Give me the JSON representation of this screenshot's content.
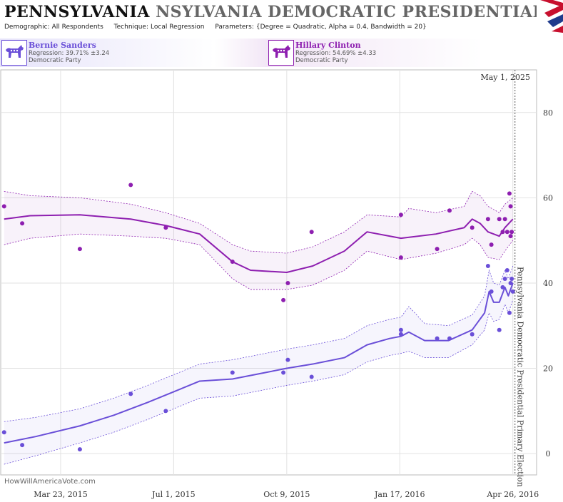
{
  "header": {
    "title_state": "PENNSYLVANIA",
    "title_rest": "NSYLVANIA DEMOCRATIC PRESIDENTIAL PRIM",
    "params": [
      {
        "label": "Demographic:",
        "value": "All Respondents"
      },
      {
        "label": "Technique:",
        "value": "Local Regression"
      },
      {
        "label": "Parameters:",
        "value": "{Degree = Quadratic, Alpha = 0.4, Bandwidth = 20}"
      }
    ]
  },
  "candidates": [
    {
      "name": "Bernie Sanders",
      "regression": "Regression: 39.71% ±3.24",
      "party": "Democratic Party",
      "color": "#6a4fd8",
      "icon": "donkey-icon"
    },
    {
      "name": "Hillary Clinton",
      "regression": "Regression: 54.69% ±4.33",
      "party": "Democratic Party",
      "color": "#8e1fb0",
      "icon": "donkey-icon"
    }
  ],
  "chart_data": {
    "type": "scatter",
    "x_tick_labels": [
      "Mar 23, 2015",
      "Jul 1, 2015",
      "Oct 9, 2015",
      "Jan 17, 2016",
      "Apr 26, 2016"
    ],
    "x_tick_dates": [
      "2015-03-23",
      "2015-07-01",
      "2015-10-09",
      "2016-01-17",
      "2016-04-26"
    ],
    "xlim": [
      "2015-01-29",
      "2016-05-17"
    ],
    "y_ticks": [
      0,
      20,
      40,
      60,
      80
    ],
    "ylim": [
      -5,
      90
    ],
    "grid": true,
    "event": {
      "date": "2016-04-26",
      "label": "Pennsylvania Democratic Presidential Primary Election"
    },
    "corner_date_label": "May 1, 2025",
    "watermark": "HowWillAmericaVote.com",
    "series": [
      {
        "name": "Hillary Clinton",
        "color": "#8e1fb0",
        "points": [
          [
            "2015-02-01",
            58
          ],
          [
            "2015-02-17",
            54
          ],
          [
            "2015-04-09",
            48
          ],
          [
            "2015-05-24",
            63
          ],
          [
            "2015-06-24",
            53
          ],
          [
            "2015-08-22",
            45
          ],
          [
            "2015-10-06",
            36
          ],
          [
            "2015-10-10",
            40
          ],
          [
            "2015-10-31",
            52
          ],
          [
            "2016-01-18",
            56
          ],
          [
            "2016-01-18",
            46
          ],
          [
            "2016-02-19",
            48
          ],
          [
            "2016-03-01",
            57
          ],
          [
            "2016-03-21",
            53
          ],
          [
            "2016-04-04",
            55
          ],
          [
            "2016-04-07",
            49
          ],
          [
            "2016-04-14",
            55
          ],
          [
            "2016-04-17",
            52
          ],
          [
            "2016-04-19",
            55
          ],
          [
            "2016-04-21",
            52
          ],
          [
            "2016-04-23",
            61
          ],
          [
            "2016-04-24",
            58
          ],
          [
            "2016-04-24",
            51
          ],
          [
            "2016-04-25",
            52
          ]
        ],
        "trend": [
          [
            "2015-02-01",
            55
          ],
          [
            "2015-02-24",
            55.8
          ],
          [
            "2015-04-09",
            56
          ],
          [
            "2015-05-24",
            55
          ],
          [
            "2015-06-24",
            53.5
          ],
          [
            "2015-07-24",
            51.5
          ],
          [
            "2015-08-22",
            45
          ],
          [
            "2015-09-07",
            43
          ],
          [
            "2015-10-09",
            42.5
          ],
          [
            "2015-11-01",
            44
          ],
          [
            "2015-11-29",
            47.5
          ],
          [
            "2015-12-19",
            52
          ],
          [
            "2016-01-18",
            50.5
          ],
          [
            "2016-02-18",
            51.5
          ],
          [
            "2016-03-14",
            53
          ],
          [
            "2016-03-21",
            55
          ],
          [
            "2016-03-28",
            54
          ],
          [
            "2016-04-04",
            52
          ],
          [
            "2016-04-14",
            51
          ],
          [
            "2016-04-19",
            53
          ],
          [
            "2016-04-26",
            55
          ]
        ],
        "upper": [
          [
            "2015-02-01",
            61.5
          ],
          [
            "2015-02-24",
            60.5
          ],
          [
            "2015-04-09",
            60
          ],
          [
            "2015-05-24",
            58.5
          ],
          [
            "2015-06-24",
            56.5
          ],
          [
            "2015-07-24",
            54
          ],
          [
            "2015-08-22",
            49
          ],
          [
            "2015-09-07",
            47.5
          ],
          [
            "2015-10-09",
            47
          ],
          [
            "2015-11-01",
            48.5
          ],
          [
            "2015-11-29",
            52
          ],
          [
            "2015-12-19",
            56
          ],
          [
            "2016-01-18",
            55.5
          ],
          [
            "2016-01-25",
            57.5
          ],
          [
            "2016-02-18",
            56.5
          ],
          [
            "2016-03-14",
            58
          ],
          [
            "2016-03-21",
            61.5
          ],
          [
            "2016-03-28",
            60.5
          ],
          [
            "2016-04-04",
            58
          ],
          [
            "2016-04-14",
            56.5
          ],
          [
            "2016-04-19",
            58.5
          ],
          [
            "2016-04-26",
            60
          ]
        ],
        "lower": [
          [
            "2015-02-01",
            49
          ],
          [
            "2015-02-24",
            50.5
          ],
          [
            "2015-04-09",
            51.5
          ],
          [
            "2015-05-24",
            51
          ],
          [
            "2015-06-24",
            50.5
          ],
          [
            "2015-07-24",
            49
          ],
          [
            "2015-08-22",
            41
          ],
          [
            "2015-09-07",
            38.5
          ],
          [
            "2015-10-09",
            38.5
          ],
          [
            "2015-11-01",
            39.5
          ],
          [
            "2015-11-29",
            43
          ],
          [
            "2015-12-19",
            47.5
          ],
          [
            "2016-01-18",
            45.5
          ],
          [
            "2016-02-18",
            47
          ],
          [
            "2016-03-14",
            49
          ],
          [
            "2016-03-21",
            50.5
          ],
          [
            "2016-03-28",
            49
          ],
          [
            "2016-04-04",
            46
          ],
          [
            "2016-04-14",
            45.5
          ],
          [
            "2016-04-19",
            47.5
          ],
          [
            "2016-04-26",
            50
          ]
        ]
      },
      {
        "name": "Bernie Sanders",
        "color": "#6a4fd8",
        "points": [
          [
            "2015-02-01",
            5
          ],
          [
            "2015-02-17",
            2
          ],
          [
            "2015-04-09",
            1
          ],
          [
            "2015-05-24",
            14
          ],
          [
            "2015-06-24",
            10
          ],
          [
            "2015-08-22",
            19
          ],
          [
            "2015-10-06",
            19
          ],
          [
            "2015-10-10",
            22
          ],
          [
            "2015-10-31",
            18
          ],
          [
            "2016-01-18",
            29
          ],
          [
            "2016-01-18",
            28
          ],
          [
            "2016-02-19",
            27
          ],
          [
            "2016-03-01",
            27
          ],
          [
            "2016-03-21",
            28
          ],
          [
            "2016-04-04",
            44
          ],
          [
            "2016-04-07",
            38
          ],
          [
            "2016-04-14",
            29
          ],
          [
            "2016-04-17",
            39
          ],
          [
            "2016-04-19",
            41
          ],
          [
            "2016-04-21",
            43
          ],
          [
            "2016-04-23",
            33
          ],
          [
            "2016-04-24",
            40
          ],
          [
            "2016-04-25",
            41
          ],
          [
            "2016-04-26",
            38
          ]
        ],
        "trend": [
          [
            "2015-02-01",
            2.5
          ],
          [
            "2015-03-01",
            4
          ],
          [
            "2015-04-09",
            6.5
          ],
          [
            "2015-05-09",
            9
          ],
          [
            "2015-06-08",
            12
          ],
          [
            "2015-07-01",
            14.5
          ],
          [
            "2015-07-24",
            17
          ],
          [
            "2015-08-22",
            17.5
          ],
          [
            "2015-09-20",
            19
          ],
          [
            "2015-10-09",
            20
          ],
          [
            "2015-11-01",
            21
          ],
          [
            "2015-11-29",
            22.5
          ],
          [
            "2015-12-19",
            25.5
          ],
          [
            "2016-01-08",
            27
          ],
          [
            "2016-01-18",
            27.5
          ],
          [
            "2016-01-25",
            28.5
          ],
          [
            "2016-02-08",
            26.5
          ],
          [
            "2016-02-29",
            26.5
          ],
          [
            "2016-03-21",
            29
          ],
          [
            "2016-04-01",
            33
          ],
          [
            "2016-04-05",
            38
          ],
          [
            "2016-04-09",
            35.5
          ],
          [
            "2016-04-14",
            35.5
          ],
          [
            "2016-04-19",
            39
          ],
          [
            "2016-04-22",
            37
          ],
          [
            "2016-04-26",
            40
          ]
        ],
        "upper": [
          [
            "2015-02-01",
            7.5
          ],
          [
            "2015-03-01",
            8.5
          ],
          [
            "2015-04-09",
            10.5
          ],
          [
            "2015-05-09",
            13
          ],
          [
            "2015-06-08",
            16
          ],
          [
            "2015-07-01",
            18.5
          ],
          [
            "2015-07-24",
            21
          ],
          [
            "2015-08-22",
            22
          ],
          [
            "2015-09-20",
            23.5
          ],
          [
            "2015-10-09",
            24.5
          ],
          [
            "2015-11-01",
            25.5
          ],
          [
            "2015-11-29",
            27
          ],
          [
            "2015-12-19",
            30
          ],
          [
            "2016-01-08",
            31.5
          ],
          [
            "2016-01-18",
            32
          ],
          [
            "2016-01-25",
            34.5
          ],
          [
            "2016-02-08",
            30.5
          ],
          [
            "2016-02-29",
            30
          ],
          [
            "2016-03-21",
            32.5
          ],
          [
            "2016-04-01",
            37
          ],
          [
            "2016-04-05",
            43
          ],
          [
            "2016-04-09",
            40
          ],
          [
            "2016-04-14",
            39.5
          ],
          [
            "2016-04-19",
            43
          ],
          [
            "2016-04-22",
            41
          ],
          [
            "2016-04-26",
            44
          ]
        ],
        "lower": [
          [
            "2015-02-01",
            -2.5
          ],
          [
            "2015-03-01",
            -0.5
          ],
          [
            "2015-04-09",
            2.5
          ],
          [
            "2015-05-09",
            5
          ],
          [
            "2015-06-08",
            8
          ],
          [
            "2015-07-01",
            10.5
          ],
          [
            "2015-07-24",
            13
          ],
          [
            "2015-08-22",
            13.5
          ],
          [
            "2015-09-20",
            15
          ],
          [
            "2015-10-09",
            16
          ],
          [
            "2015-11-01",
            17
          ],
          [
            "2015-11-29",
            18.5
          ],
          [
            "2015-12-19",
            21.5
          ],
          [
            "2016-01-08",
            23
          ],
          [
            "2016-01-18",
            23.5
          ],
          [
            "2016-01-25",
            24
          ],
          [
            "2016-02-08",
            22.5
          ],
          [
            "2016-02-29",
            22.5
          ],
          [
            "2016-03-21",
            25.5
          ],
          [
            "2016-04-01",
            29
          ],
          [
            "2016-04-05",
            33
          ],
          [
            "2016-04-09",
            31
          ],
          [
            "2016-04-14",
            31.5
          ],
          [
            "2016-04-19",
            35
          ],
          [
            "2016-04-22",
            33
          ],
          [
            "2016-04-26",
            36
          ]
        ]
      }
    ]
  }
}
